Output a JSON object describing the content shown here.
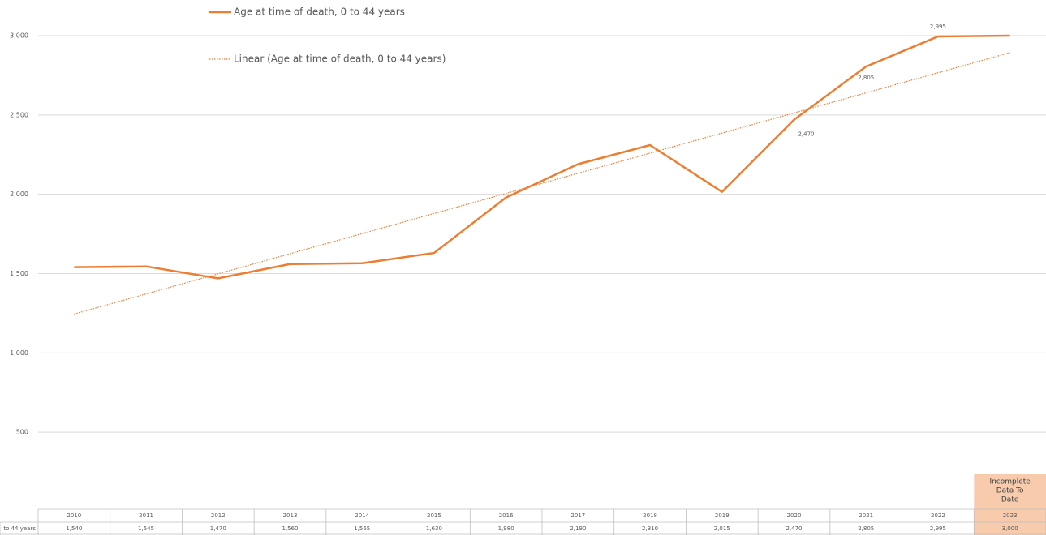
{
  "chart_data": {
    "type": "line",
    "categories": [
      "2010",
      "2011",
      "2012",
      "2013",
      "2014",
      "2015",
      "2016",
      "2017",
      "2018",
      "2019",
      "2020",
      "2021",
      "2022",
      "2023"
    ],
    "series": [
      {
        "name": "Age at time of death, 0 to 44 years",
        "color": "#ed7d31",
        "values": [
          1540,
          1545,
          1470,
          1560,
          1565,
          1630,
          1980,
          2190,
          2310,
          2015,
          2470,
          2805,
          2995,
          3000
        ],
        "value_labels": [
          null,
          null,
          null,
          null,
          null,
          null,
          null,
          null,
          null,
          null,
          "2,470",
          "2,805",
          "2,995",
          null
        ]
      }
    ],
    "trendline": {
      "name": "Linear (Age at time of death, 0 to 44 years)",
      "color": "#ed7d31",
      "values": [
        1245,
        2893
      ]
    },
    "ylim": [
      0,
      3000
    ],
    "yticks": [
      {
        "value": 500,
        "label": "500"
      },
      {
        "value": 1000,
        "label": "1,000"
      },
      {
        "value": 1500,
        "label": "1,500"
      },
      {
        "value": 2000,
        "label": "2,000"
      },
      {
        "value": 2500,
        "label": "2,500"
      },
      {
        "value": 3000,
        "label": "3,000"
      }
    ],
    "grid": true,
    "data_table": {
      "row_label": "to 44 years",
      "cells": [
        "1,540",
        "1,545",
        "1,470",
        "1,560",
        "1,565",
        "1,630",
        "1,980",
        "2,190",
        "2,310",
        "2,015",
        "2,470",
        "2,805",
        "2,995",
        "3,000"
      ]
    },
    "annotation": {
      "lines": [
        "Incomplete",
        "Data To",
        "Date"
      ],
      "color": "#f8cbad"
    }
  }
}
